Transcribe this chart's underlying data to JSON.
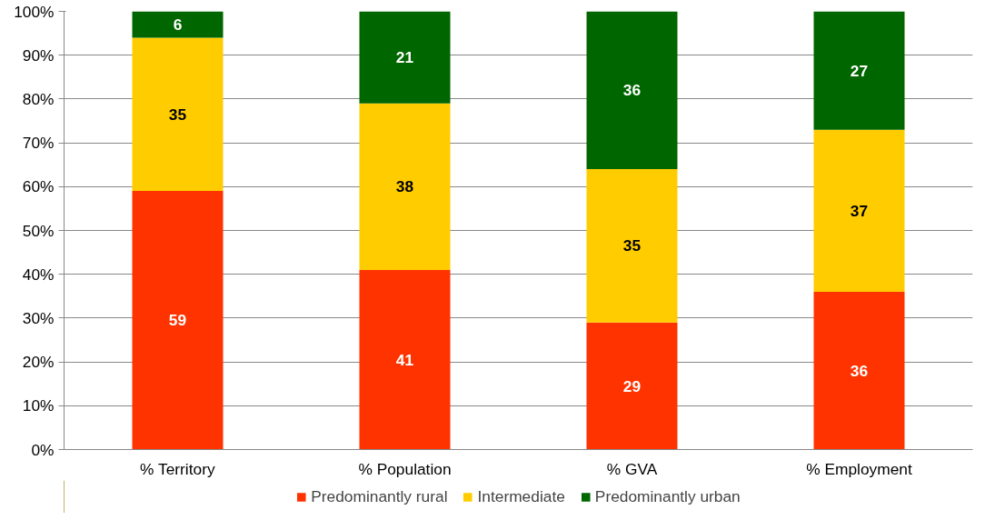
{
  "chart_data": {
    "type": "bar",
    "stacked": true,
    "categories": [
      "% Territory",
      "% Population",
      "% GVA",
      "% Employment"
    ],
    "series": [
      {
        "name": "Predominantly rural",
        "color": "#ff3300",
        "values": [
          59,
          41,
          29,
          36
        ]
      },
      {
        "name": "Intermediate",
        "color": "#ffcc00",
        "values": [
          35,
          38,
          35,
          37
        ]
      },
      {
        "name": "Predominantly urban",
        "color": "#006600",
        "values": [
          6,
          21,
          36,
          27
        ]
      }
    ],
    "ylim": [
      0,
      100
    ],
    "yticks": [
      {
        "value": 0,
        "label": "0%"
      },
      {
        "value": 10,
        "label": "10%"
      },
      {
        "value": 20,
        "label": "20%"
      },
      {
        "value": 30,
        "label": "30%"
      },
      {
        "value": 40,
        "label": "40%"
      },
      {
        "value": 50,
        "label": "50%"
      },
      {
        "value": 60,
        "label": "60%"
      },
      {
        "value": 70,
        "label": "70%"
      },
      {
        "value": 80,
        "label": "80%"
      },
      {
        "value": 90,
        "label": "90%"
      },
      {
        "value": 100,
        "label": "100%"
      }
    ],
    "grid": "y",
    "legend": "bottom",
    "data_labels": true
  }
}
